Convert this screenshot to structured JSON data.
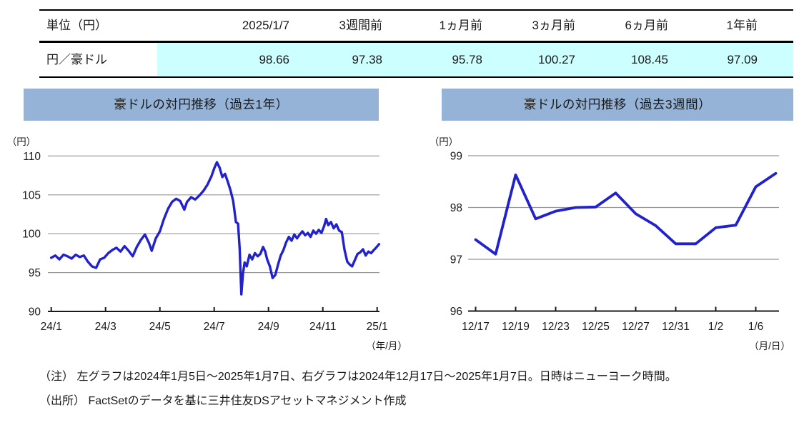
{
  "table": {
    "header": [
      "単位（円）",
      "2025/1/7",
      "3週間前",
      "1ヵ月前",
      "3ヵ月前",
      "6ヵ月前",
      "1年前"
    ],
    "rows": [
      {
        "label": "円／豪ドル",
        "values": [
          "98.66",
          "97.38",
          "95.78",
          "100.27",
          "108.45",
          "97.09"
        ]
      }
    ]
  },
  "chart_data": [
    {
      "type": "line",
      "title": "豪ドルの対円推移（過去1年）",
      "unit_label": "（円）",
      "axis_note": "（年/月）",
      "ylabel": "円",
      "ylim": [
        90,
        110
      ],
      "y_ticks": [
        90,
        95,
        100,
        105,
        110
      ],
      "x_tick_labels": [
        "24/1",
        "24/3",
        "24/5",
        "24/7",
        "24/9",
        "24/11",
        "25/1"
      ],
      "x_tick_units": [
        0,
        2,
        4,
        6,
        8,
        10,
        12
      ],
      "x_unit": "months_since_2024_01",
      "x": [
        0.0,
        0.15,
        0.3,
        0.45,
        0.6,
        0.75,
        0.9,
        1.05,
        1.2,
        1.35,
        1.5,
        1.65,
        1.8,
        1.95,
        2.1,
        2.25,
        2.4,
        2.55,
        2.7,
        2.85,
        3.0,
        3.15,
        3.3,
        3.45,
        3.6,
        3.7,
        3.85,
        4.0,
        4.15,
        4.3,
        4.45,
        4.6,
        4.75,
        4.9,
        5.0,
        5.15,
        5.3,
        5.45,
        5.6,
        5.75,
        5.9,
        6.0,
        6.1,
        6.2,
        6.3,
        6.4,
        6.5,
        6.6,
        6.7,
        6.8,
        6.88,
        6.94,
        7.0,
        7.06,
        7.12,
        7.2,
        7.3,
        7.4,
        7.5,
        7.6,
        7.7,
        7.8,
        7.88,
        7.95,
        8.05,
        8.15,
        8.25,
        8.35,
        8.45,
        8.55,
        8.65,
        8.75,
        8.85,
        8.95,
        9.05,
        9.15,
        9.25,
        9.35,
        9.45,
        9.55,
        9.65,
        9.75,
        9.85,
        9.95,
        10.05,
        10.12,
        10.2,
        10.3,
        10.4,
        10.5,
        10.6,
        10.7,
        10.8,
        10.9,
        11.0,
        11.08,
        11.18,
        11.28,
        11.38,
        11.48,
        11.58,
        11.68,
        11.78,
        11.88,
        11.96,
        12.07
      ],
      "values": [
        96.9,
        97.2,
        96.7,
        97.3,
        97.1,
        96.8,
        97.3,
        97.0,
        97.2,
        96.4,
        95.8,
        95.6,
        96.7,
        96.9,
        97.5,
        97.9,
        98.2,
        97.7,
        98.4,
        97.8,
        97.1,
        98.3,
        99.2,
        99.9,
        98.8,
        97.8,
        99.4,
        100.3,
        101.9,
        103.2,
        104.1,
        104.5,
        104.2,
        103.1,
        104.1,
        104.7,
        104.4,
        104.9,
        105.5,
        106.3,
        107.4,
        108.4,
        109.2,
        108.5,
        107.3,
        107.7,
        106.7,
        105.6,
        104.2,
        101.5,
        101.3,
        98.0,
        92.2,
        94.9,
        96.3,
        95.8,
        97.3,
        96.7,
        97.5,
        97.1,
        97.4,
        98.3,
        97.7,
        96.7,
        95.8,
        94.3,
        94.7,
        96.0,
        97.2,
        97.9,
        98.9,
        99.6,
        99.1,
        99.9,
        99.4,
        99.9,
        100.3,
        99.8,
        100.1,
        99.6,
        100.4,
        100.0,
        100.5,
        100.1,
        101.0,
        101.9,
        101.1,
        101.5,
        100.7,
        101.2,
        100.4,
        100.2,
        97.9,
        96.4,
        96.0,
        95.8,
        96.6,
        97.4,
        97.6,
        98.0,
        97.2,
        97.7,
        97.5,
        97.9,
        98.2,
        98.66
      ]
    },
    {
      "type": "line",
      "title": "豪ドルの対円推移（過去3週間）",
      "unit_label": "（円）",
      "axis_note": "（月/日）",
      "ylabel": "円",
      "ylim": [
        96,
        99
      ],
      "y_ticks": [
        96,
        97,
        98,
        99
      ],
      "x_tick_labels": [
        "12/17",
        "12/19",
        "12/23",
        "12/25",
        "12/27",
        "12/31",
        "1/2",
        "1/6"
      ],
      "x_tick_units": [
        0,
        2,
        4,
        6,
        8,
        10,
        12,
        14
      ],
      "dates": [
        "12/17",
        "12/18",
        "12/19",
        "12/20",
        "12/23",
        "12/24",
        "12/25",
        "12/26",
        "12/27",
        "12/30",
        "12/31",
        "1/1",
        "1/2",
        "1/3",
        "1/6",
        "1/7"
      ],
      "x": [
        0,
        1,
        2,
        3,
        4,
        5,
        6,
        7,
        8,
        9,
        10,
        11,
        12,
        13,
        14,
        15
      ],
      "values": [
        97.38,
        97.1,
        98.63,
        97.78,
        97.93,
        98.0,
        98.01,
        98.28,
        97.88,
        97.65,
        97.3,
        97.3,
        97.61,
        97.66,
        98.4,
        98.66
      ]
    }
  ],
  "notes": [
    "（注） 左グラフは2024年1月5日～2025年1月7日、右グラフは2024年12月17日～2025年1月7日。日時はニューヨーク時間。",
    "（出所） FactSetのデータを基に三井住友DSアセットマネジメント作成"
  ],
  "colors": {
    "line": "#2121CD",
    "gridline": "#999999",
    "axis": "#1a1a1a",
    "title_band": "#95B3D7",
    "table_highlight": "#CCFFFF"
  }
}
